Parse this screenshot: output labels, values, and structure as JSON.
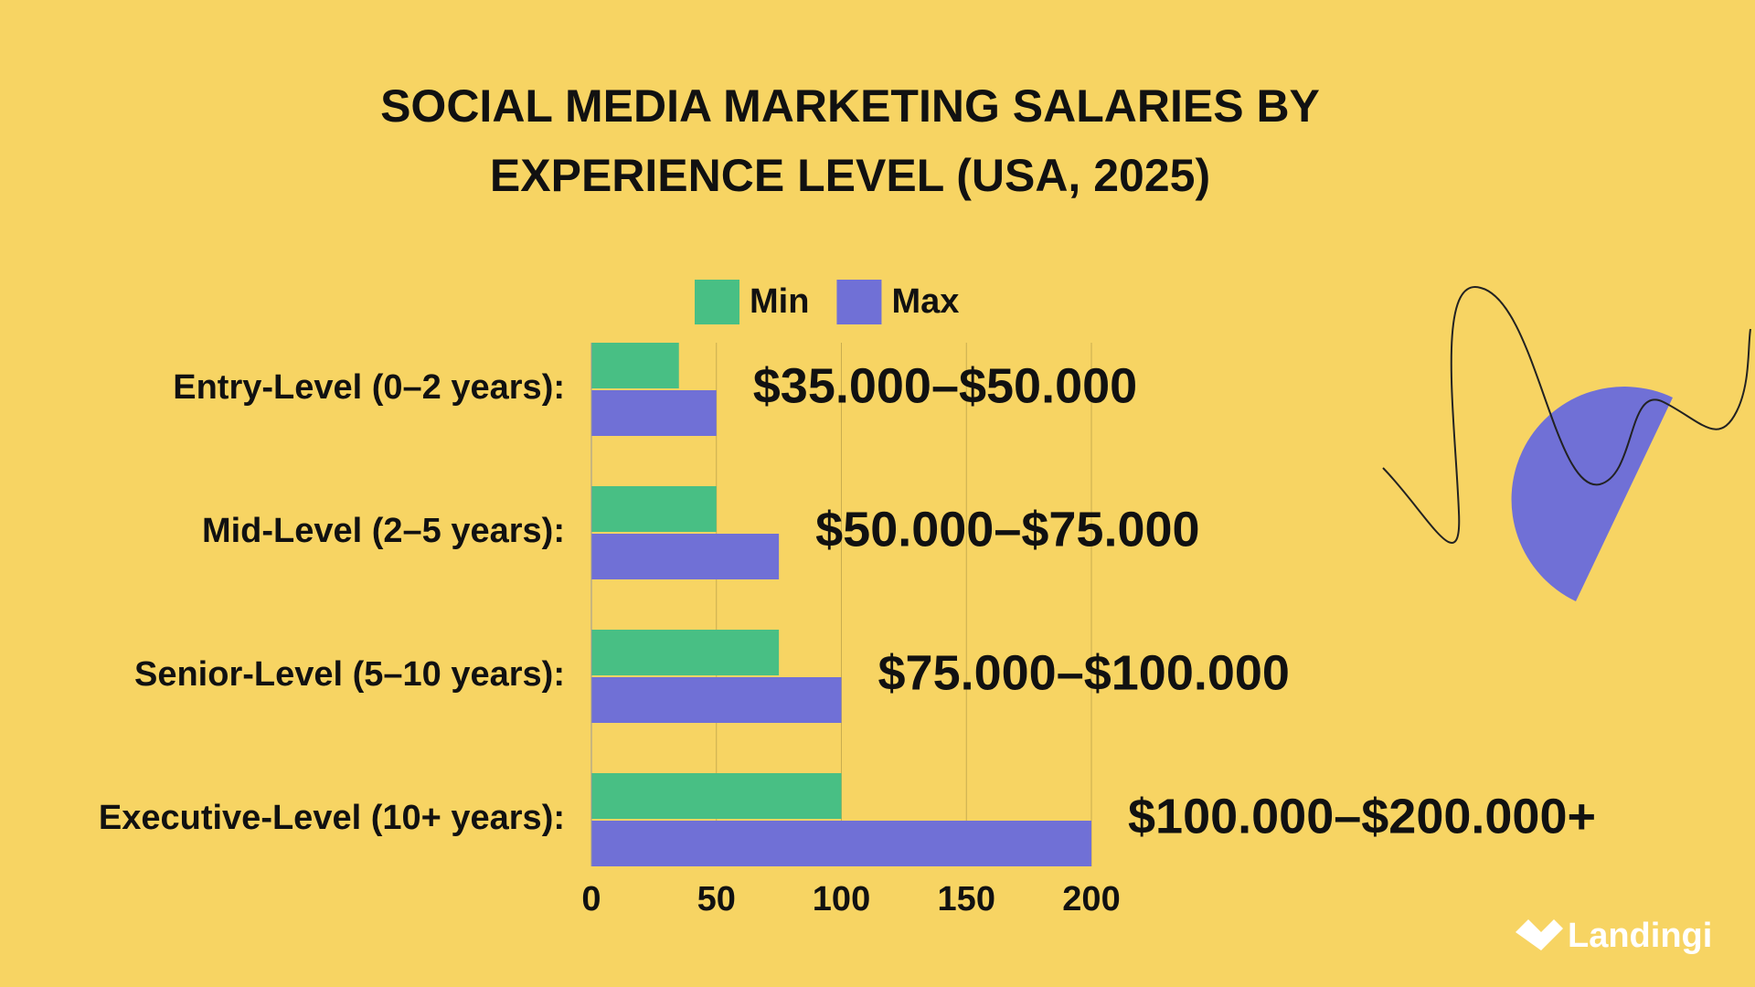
{
  "chart_data": {
    "type": "bar",
    "orientation": "horizontal",
    "title": "SOCIAL MEDIA MARKETING SALARIES BY EXPERIENCE LEVEL (USA, 2025)",
    "categories": [
      "Entry-Level (0–2 years):",
      "Mid-Level (2–5 years):",
      "Senior-Level (5–10 years):",
      "Executive-Level (10+ years):"
    ],
    "series": [
      {
        "name": "Min",
        "color": "#48bf84",
        "values": [
          35,
          50,
          75,
          100
        ]
      },
      {
        "name": "Max",
        "color": "#7070d6",
        "values": [
          50,
          75,
          100,
          200
        ]
      }
    ],
    "annotations": [
      "$35.000–$50.000",
      "$50.000–$75.000",
      "$75.000–$100.000",
      "$100.000–$200.000+"
    ],
    "xlim": [
      0,
      200
    ],
    "xticks": [
      0,
      50,
      100,
      150,
      200
    ],
    "grid": true,
    "legend": "top"
  },
  "brand": "Landingi"
}
